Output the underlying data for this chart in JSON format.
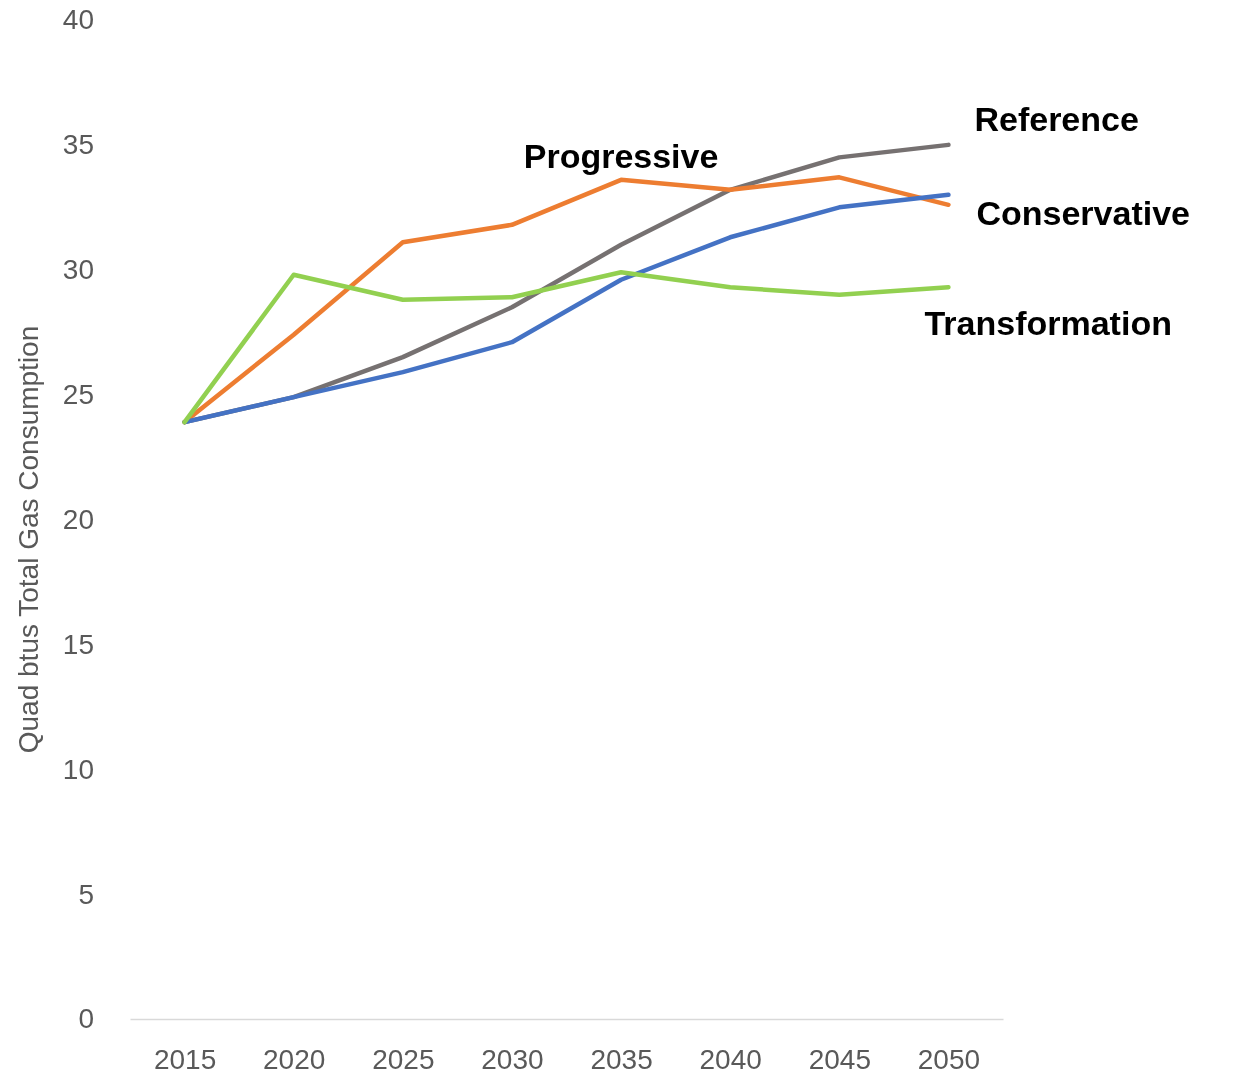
{
  "chart_data": {
    "type": "line",
    "ylabel": "Quad btus Total Gas Consumption",
    "categories": [
      "2015",
      "2020",
      "2025",
      "2030",
      "2035",
      "2040",
      "2045",
      "2050"
    ],
    "series": [
      {
        "name": "Reference",
        "color": "#767171",
        "values": [
          23.9,
          24.9,
          26.5,
          28.5,
          31.0,
          33.2,
          34.5,
          35.0
        ]
      },
      {
        "name": "Progressive",
        "color": "#ed7d31",
        "values": [
          23.9,
          27.4,
          31.1,
          31.8,
          33.6,
          33.2,
          33.7,
          32.6
        ]
      },
      {
        "name": "Conservative",
        "color": "#4472c4",
        "values": [
          23.9,
          24.9,
          25.9,
          27.1,
          29.6,
          31.3,
          32.5,
          33.0
        ]
      },
      {
        "name": "Transformation",
        "color": "#92d050",
        "values": [
          23.9,
          29.8,
          28.8,
          28.9,
          29.9,
          29.3,
          29.0,
          29.3
        ]
      }
    ],
    "ylim": [
      0,
      40
    ],
    "yticks": [
      0,
      5,
      10,
      15,
      20,
      25,
      30,
      35,
      40
    ],
    "grid": false,
    "legend": false,
    "marker": "none",
    "line_style": "solid"
  }
}
